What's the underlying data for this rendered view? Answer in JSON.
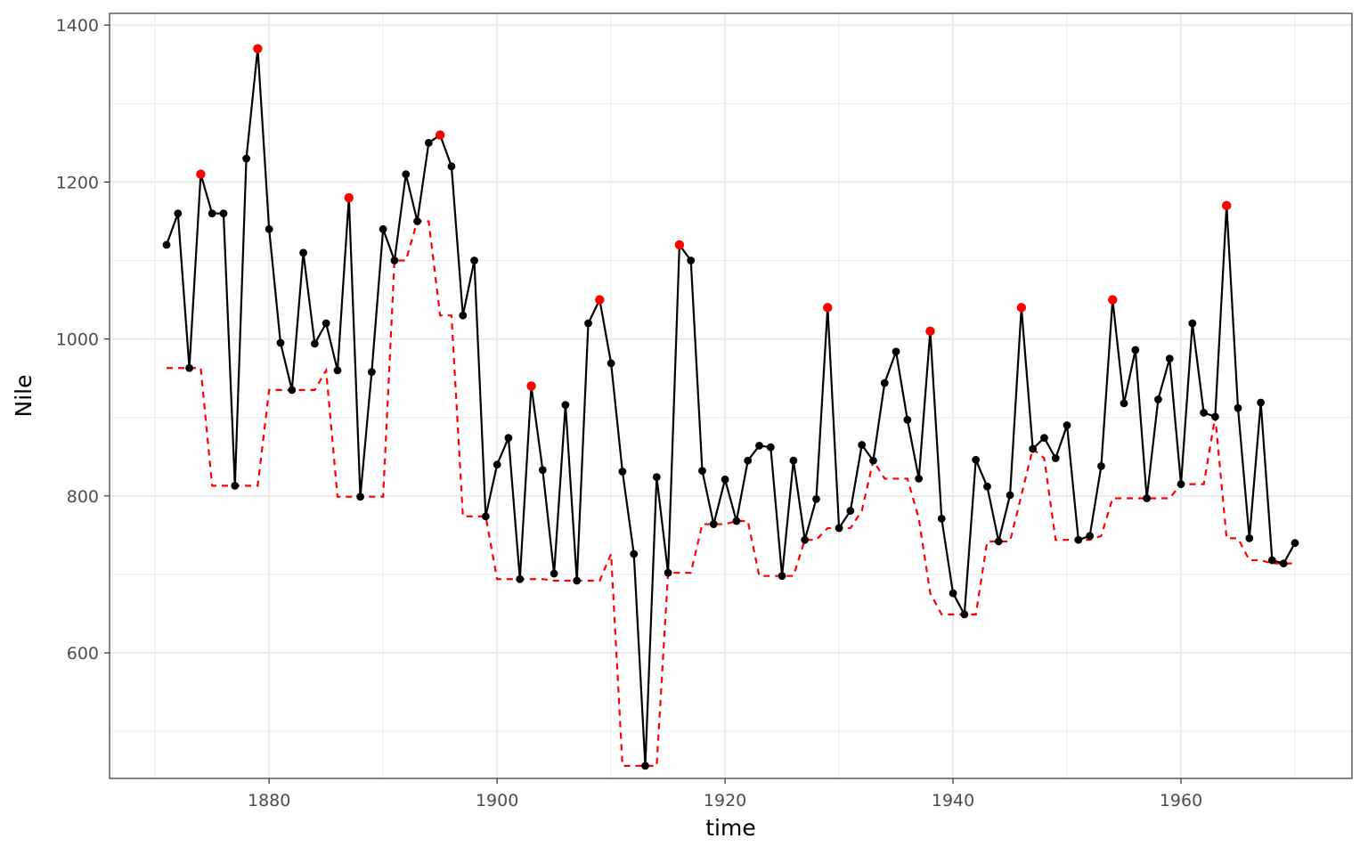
{
  "chart_data": {
    "type": "line",
    "xlabel": "time",
    "ylabel": "Nile",
    "xlim": [
      1866,
      1975
    ],
    "ylim": [
      440,
      1415
    ],
    "x_ticks": [
      1880,
      1900,
      1920,
      1940,
      1960
    ],
    "x_tick_labels": [
      "1880",
      "1900",
      "1920",
      "1940",
      "1960"
    ],
    "y_ticks": [
      600,
      800,
      1000,
      1200,
      1400
    ],
    "y_tick_labels": [
      "600",
      "800",
      "1000",
      "1200",
      "1400"
    ],
    "grid": true,
    "x": [
      1871,
      1872,
      1873,
      1874,
      1875,
      1876,
      1877,
      1878,
      1879,
      1880,
      1881,
      1882,
      1883,
      1884,
      1885,
      1886,
      1887,
      1888,
      1889,
      1890,
      1891,
      1892,
      1893,
      1894,
      1895,
      1896,
      1897,
      1898,
      1899,
      1900,
      1901,
      1902,
      1903,
      1904,
      1905,
      1906,
      1907,
      1908,
      1909,
      1910,
      1911,
      1912,
      1913,
      1914,
      1915,
      1916,
      1917,
      1918,
      1919,
      1920,
      1921,
      1922,
      1923,
      1924,
      1925,
      1926,
      1927,
      1928,
      1929,
      1930,
      1931,
      1932,
      1933,
      1934,
      1935,
      1936,
      1937,
      1938,
      1939,
      1940,
      1941,
      1942,
      1943,
      1944,
      1945,
      1946,
      1947,
      1948,
      1949,
      1950,
      1951,
      1952,
      1953,
      1954,
      1955,
      1956,
      1957,
      1958,
      1959,
      1960,
      1961,
      1962,
      1963,
      1964,
      1965,
      1966,
      1967,
      1968,
      1969,
      1970
    ],
    "series": [
      {
        "style": "solid-black-with-points",
        "color": "#000000",
        "values": [
          1120,
          1160,
          963,
          1210,
          1160,
          1160,
          813,
          1230,
          1370,
          1140,
          995,
          935,
          1110,
          994,
          1020,
          960,
          1180,
          799,
          958,
          1140,
          1100,
          1210,
          1150,
          1250,
          1260,
          1220,
          1030,
          1100,
          774,
          840,
          874,
          694,
          940,
          833,
          701,
          916,
          692,
          1020,
          1050,
          969,
          831,
          726,
          456,
          824,
          702,
          1120,
          1100,
          832,
          764,
          821,
          768,
          845,
          864,
          862,
          698,
          845,
          744,
          796,
          1040,
          759,
          781,
          865,
          845,
          944,
          984,
          897,
          822,
          1010,
          771,
          676,
          649,
          846,
          812,
          742,
          801,
          1040,
          860,
          874,
          848,
          890,
          744,
          749,
          838,
          1050,
          918,
          986,
          797,
          923,
          975,
          815,
          1020,
          906,
          901,
          1170,
          912,
          746,
          919,
          718,
          714,
          740
        ]
      },
      {
        "style": "dashed-red",
        "color": "#FF0000",
        "values": [
          963,
          963,
          963,
          963,
          813,
          813,
          813,
          813,
          813,
          935,
          935,
          935,
          935,
          935,
          960,
          799,
          799,
          799,
          799,
          799,
          1100,
          1100,
          1150,
          1150,
          1030,
          1030,
          774,
          774,
          774,
          694,
          694,
          694,
          694,
          694,
          692,
          692,
          692,
          692,
          692,
          726,
          456,
          456,
          456,
          456,
          702,
          702,
          702,
          764,
          764,
          764,
          768,
          768,
          698,
          698,
          698,
          698,
          744,
          744,
          759,
          759,
          759,
          781,
          845,
          822,
          822,
          822,
          771,
          676,
          649,
          649,
          649,
          649,
          742,
          742,
          742,
          801,
          860,
          848,
          744,
          744,
          744,
          744,
          749,
          797,
          797,
          797,
          797,
          797,
          797,
          815,
          815,
          815,
          901,
          746,
          746,
          718,
          718,
          714,
          714,
          714
        ]
      }
    ],
    "highlight_color": "#FF0000",
    "highlight_points": [
      {
        "x": 1874,
        "y": 1210
      },
      {
        "x": 1879,
        "y": 1370
      },
      {
        "x": 1887,
        "y": 1180
      },
      {
        "x": 1895,
        "y": 1260
      },
      {
        "x": 1903,
        "y": 940
      },
      {
        "x": 1909,
        "y": 1050
      },
      {
        "x": 1916,
        "y": 1120
      },
      {
        "x": 1929,
        "y": 1040
      },
      {
        "x": 1938,
        "y": 1010
      },
      {
        "x": 1946,
        "y": 1040
      },
      {
        "x": 1954,
        "y": 1050
      },
      {
        "x": 1964,
        "y": 1170
      }
    ]
  }
}
